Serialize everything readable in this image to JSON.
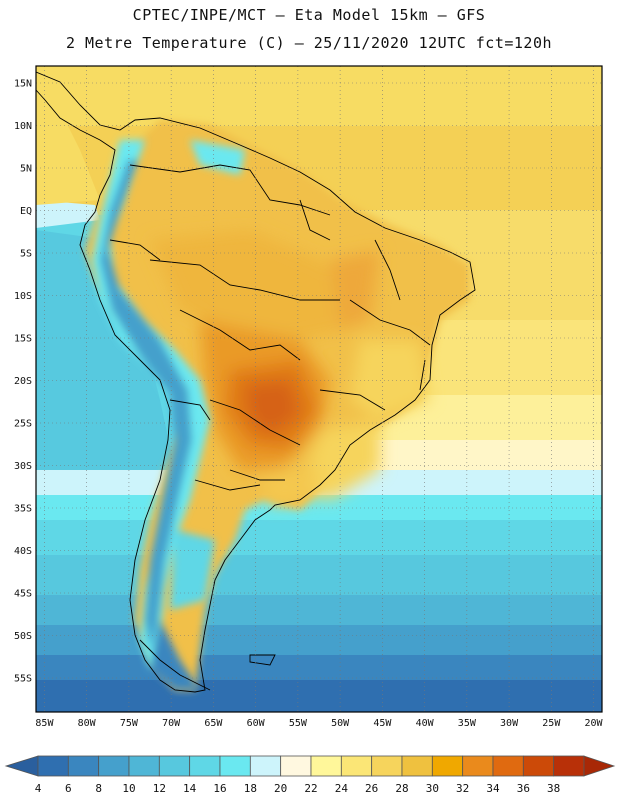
{
  "header": {
    "line1": "CPTEC/INPE/MCT –  Eta Model 15km – GFS",
    "line2": "2 Metre Temperature (C) – 25/11/2020 12UTC fct=120h"
  },
  "map": {
    "lon_range": [
      -86,
      -19
    ],
    "lat_range": [
      17,
      -59
    ],
    "lat_ticks": [
      "15N",
      "10N",
      "5N",
      "EQ",
      "5S",
      "10S",
      "15S",
      "20S",
      "25S",
      "30S",
      "35S",
      "40S",
      "45S",
      "50S",
      "55S"
    ],
    "lon_ticks": [
      "85W",
      "80W",
      "75W",
      "70W",
      "65W",
      "60W",
      "55W",
      "50W",
      "45W",
      "40W",
      "35W",
      "30W",
      "25W",
      "20W"
    ]
  },
  "colorbar": {
    "labels": [
      "4",
      "6",
      "8",
      "10",
      "12",
      "14",
      "16",
      "18",
      "20",
      "22",
      "24",
      "26",
      "28",
      "30",
      "32",
      "34",
      "36",
      "38"
    ],
    "colors": [
      "#2f6fb0",
      "#3a86bf",
      "#45a0cc",
      "#4fb6d6",
      "#57c8de",
      "#5fd7e6",
      "#6ae8f0",
      "#cdf4fb",
      "#fff8e0",
      "#fff79a",
      "#fbe676",
      "#f6d45c",
      "#efc13f",
      "#f0a800",
      "#ea8a1c",
      "#e06a10",
      "#cc4a08",
      "#b83008"
    ]
  }
}
